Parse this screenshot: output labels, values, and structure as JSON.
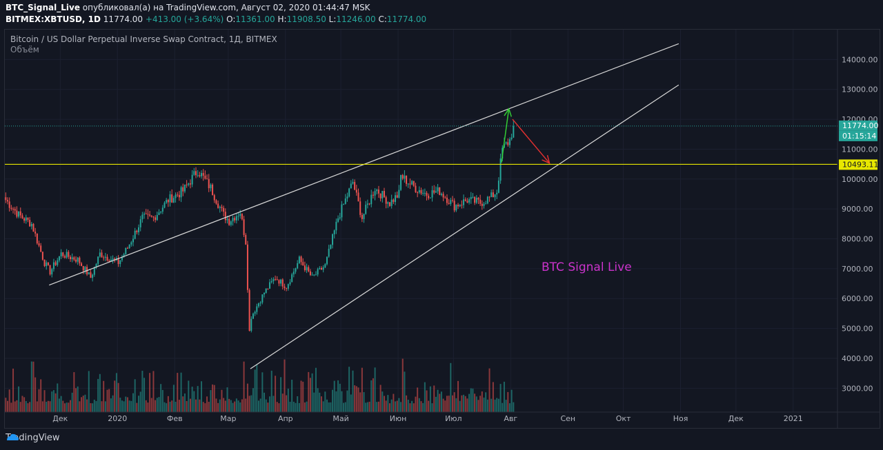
{
  "header": {
    "author": "BTC_Signal_Live",
    "published_text": "опубликовал(а) на TradingView.com, Август 02, 2020 01:44:47 MSK",
    "symbol": "BITMEX:XBTUSD, 1D",
    "last": "11774.00",
    "change": "+413.00 (+3.64%)",
    "o_label": "O:",
    "o": "11361.00",
    "h_label": "H:",
    "h": "11908.50",
    "l_label": "L:",
    "l": "11246.00",
    "c_label": "C:",
    "c": "11774.00"
  },
  "legend": {
    "title": "Bitcoin / US Dollar Perpetual Inverse Swap Contract, 1Д, BITMEX",
    "volume_label": "Объём"
  },
  "annotation": {
    "text": "BTC Signal  Live",
    "color": "#cc33cc"
  },
  "price_labels": {
    "current": "11774.00",
    "countdown": "01:15:14",
    "level": "10493.11"
  },
  "footer": {
    "brand": "TradingView"
  },
  "colors": {
    "up": "#26a69a",
    "down": "#ef5350",
    "bg": "#131722",
    "level": "#e8e800",
    "arrow_up": "#33cc33",
    "arrow_down": "#e03030"
  },
  "chart_data": {
    "type": "candlestick",
    "title": "Bitcoin / US Dollar Perpetual Inverse Swap Contract, 1Д, BITMEX",
    "ylim": [
      2200,
      15000
    ],
    "y_ticks": [
      3000,
      4000,
      5000,
      6000,
      7000,
      8000,
      9000,
      10000,
      11000,
      12000,
      13000,
      14000
    ],
    "y_tick_labels": [
      "3000.00",
      "4000.00",
      "5000.00",
      "6000.00",
      "7000.00",
      "8000.00",
      "9000.00",
      "10000.00",
      "11000.00",
      "12000.00",
      "13000.00",
      "14000.00"
    ],
    "x_tick_labels": [
      "Дек",
      "2020",
      "Фев",
      "Мар",
      "Апр",
      "Май",
      "Июн",
      "Июл",
      "Авг",
      "Сен",
      "Окт",
      "Ноя",
      "Дек",
      "2021"
    ],
    "x_tick_dates": [
      "2019-12-01",
      "2020-01-01",
      "2020-02-01",
      "2020-03-01",
      "2020-04-01",
      "2020-05-01",
      "2020-06-01",
      "2020-07-01",
      "2020-08-01",
      "2020-09-01",
      "2020-10-01",
      "2020-11-01",
      "2020-12-01",
      "2021-01-01"
    ],
    "price_anchors": [
      [
        "2019-11-01",
        9300
      ],
      [
        "2019-11-08",
        8800
      ],
      [
        "2019-11-15",
        8500
      ],
      [
        "2019-11-22",
        7200
      ],
      [
        "2019-11-25",
        6900
      ],
      [
        "2019-12-01",
        7500
      ],
      [
        "2019-12-10",
        7300
      ],
      [
        "2019-12-17",
        6700
      ],
      [
        "2019-12-22",
        7500
      ],
      [
        "2020-01-01",
        7200
      ],
      [
        "2020-01-06",
        7700
      ],
      [
        "2020-01-14",
        8700
      ],
      [
        "2020-01-20",
        8700
      ],
      [
        "2020-01-28",
        9300
      ],
      [
        "2020-02-05",
        9600
      ],
      [
        "2020-02-13",
        10300
      ],
      [
        "2020-02-20",
        9700
      ],
      [
        "2020-02-27",
        8800
      ],
      [
        "2020-03-01",
        8600
      ],
      [
        "2020-03-07",
        8900
      ],
      [
        "2020-03-10",
        7900
      ],
      [
        "2020-03-12",
        4900
      ],
      [
        "2020-03-13",
        5400
      ],
      [
        "2020-03-20",
        6200
      ],
      [
        "2020-03-26",
        6700
      ],
      [
        "2020-04-01",
        6400
      ],
      [
        "2020-04-08",
        7300
      ],
      [
        "2020-04-15",
        6700
      ],
      [
        "2020-04-22",
        7100
      ],
      [
        "2020-04-29",
        8700
      ],
      [
        "2020-05-07",
        9900
      ],
      [
        "2020-05-12",
        8700
      ],
      [
        "2020-05-19",
        9700
      ],
      [
        "2020-05-27",
        9200
      ],
      [
        "2020-06-01",
        9500
      ],
      [
        "2020-06-02",
        10100
      ],
      [
        "2020-06-10",
        9700
      ],
      [
        "2020-06-16",
        9500
      ],
      [
        "2020-06-23",
        9600
      ],
      [
        "2020-07-01",
        9100
      ],
      [
        "2020-07-08",
        9300
      ],
      [
        "2020-07-15",
        9200
      ],
      [
        "2020-07-21",
        9400
      ],
      [
        "2020-07-24",
        9600
      ],
      [
        "2020-07-27",
        11000
      ],
      [
        "2020-07-31",
        11300
      ],
      [
        "2020-08-02",
        11774
      ]
    ],
    "volume_max": 4000,
    "trendlines": [
      {
        "name": "upper channel",
        "from": [
          "2019-11-25",
          6450
        ],
        "to": [
          "2020-10-31",
          14530
        ]
      },
      {
        "name": "lower channel",
        "from": [
          "2020-03-13",
          3650
        ],
        "to": [
          "2020-10-31",
          13150
        ]
      }
    ],
    "horizontal_level": 10493.11,
    "current_price": 11774.0,
    "arrows": [
      {
        "color": "up",
        "from": [
          "2020-07-27",
          10550
        ],
        "to": [
          "2020-07-31",
          12350
        ]
      },
      {
        "color": "down",
        "from": [
          "2020-08-02",
          12000
        ],
        "to": [
          "2020-08-22",
          10530
        ]
      }
    ]
  }
}
